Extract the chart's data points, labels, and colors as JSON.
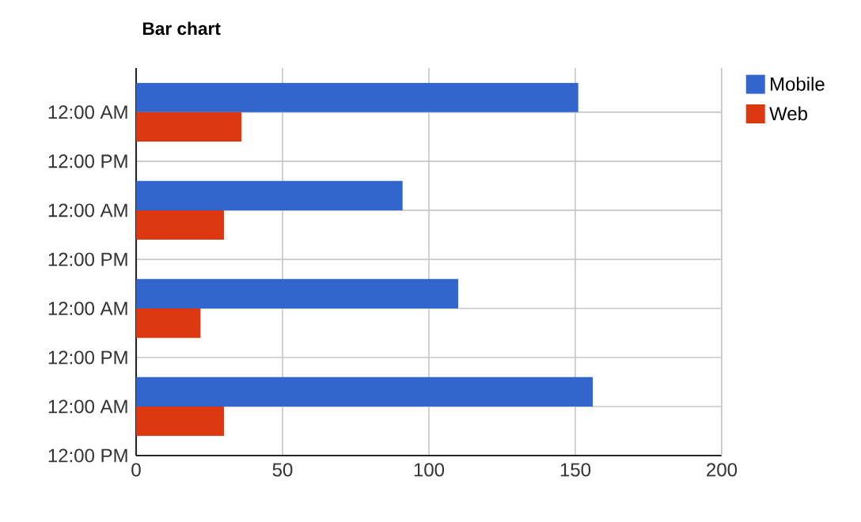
{
  "chart_data": {
    "type": "bar",
    "orientation": "horizontal",
    "title": "Bar chart",
    "categories": [
      "12:00 AM",
      "12:00 PM",
      "12:00 AM",
      "12:00 PM",
      "12:00 AM",
      "12:00 PM",
      "12:00 AM",
      "12:00 PM"
    ],
    "series": [
      {
        "name": "Mobile",
        "color": "#3366cc",
        "values": [
          151,
          null,
          91,
          null,
          110,
          null,
          156,
          null
        ]
      },
      {
        "name": "Web",
        "color": "#dc3912",
        "values": [
          36,
          null,
          30,
          null,
          22,
          null,
          30,
          null
        ]
      }
    ],
    "xlim": [
      0,
      200
    ],
    "xticks": [
      0,
      50,
      100,
      150,
      200
    ],
    "grid": true,
    "legend": "top right"
  }
}
